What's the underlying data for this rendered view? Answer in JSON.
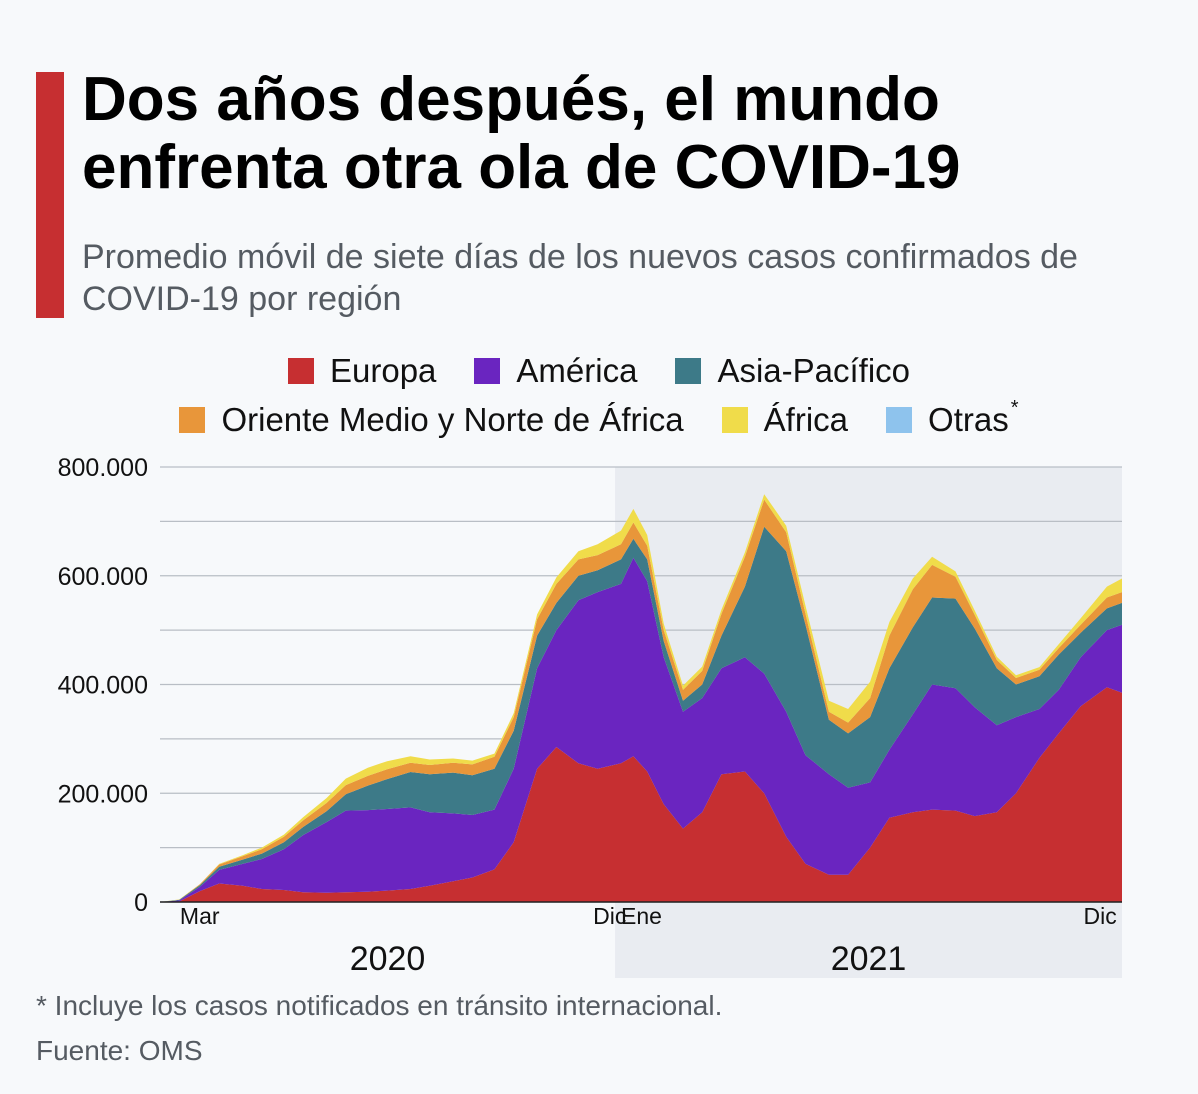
{
  "header": {
    "title": "Dos años después, el mundo enfrenta otra ola de COVID-19",
    "subtitle": "Promedio móvil de siete días de los nuevos casos confirmados de COVID-19 por región",
    "accent_color": "#c62f31"
  },
  "footer": {
    "footnote": "* Incluye los casos notificados en tránsito internacional.",
    "source": "Fuente: OMS"
  },
  "chart_data": {
    "type": "area",
    "stacked": true,
    "title": "Dos años después, el mundo enfrenta otra ola de COVID-19",
    "subtitle": "Promedio móvil de siete días de los nuevos casos confirmados de COVID-19 por región",
    "xlabel": "",
    "ylabel": "",
    "ylim": [
      0,
      800000
    ],
    "yticks": [
      0,
      200000,
      400000,
      600000,
      800000
    ],
    "ytick_labels": [
      "0",
      "200.000",
      "400.000",
      "600.000",
      "800.000"
    ],
    "xlim": [
      "2020-02-01",
      "2021-12-31"
    ],
    "xticks": [
      {
        "date": "2020-03-01",
        "label": "Mar"
      },
      {
        "date": "2020-12-01",
        "label": "Dic"
      },
      {
        "date": "2021-01-01",
        "label": "Ene"
      },
      {
        "date": "2021-12-01",
        "label": "Dic"
      }
    ],
    "year_labels": [
      {
        "label": "2020",
        "shaded": false
      },
      {
        "label": "2021",
        "shaded": true
      }
    ],
    "grid": true,
    "legend_position": "top",
    "x": [
      "2020-02-01",
      "2020-02-15",
      "2020-03-01",
      "2020-03-15",
      "2020-04-01",
      "2020-04-15",
      "2020-05-01",
      "2020-05-15",
      "2020-06-01",
      "2020-06-15",
      "2020-07-01",
      "2020-07-15",
      "2020-08-01",
      "2020-08-15",
      "2020-09-01",
      "2020-09-15",
      "2020-10-01",
      "2020-10-15",
      "2020-11-01",
      "2020-11-15",
      "2020-12-01",
      "2020-12-15",
      "2021-01-01",
      "2021-01-10",
      "2021-01-20",
      "2021-02-01",
      "2021-02-15",
      "2021-03-01",
      "2021-03-15",
      "2021-04-01",
      "2021-04-15",
      "2021-05-01",
      "2021-05-15",
      "2021-06-01",
      "2021-06-15",
      "2021-07-01",
      "2021-07-15",
      "2021-08-01",
      "2021-08-15",
      "2021-09-01",
      "2021-09-15",
      "2021-10-01",
      "2021-10-15",
      "2021-11-01",
      "2021-11-15",
      "2021-12-01",
      "2021-12-20",
      "2021-12-31"
    ],
    "series": [
      {
        "name": "Europa",
        "color": "#c62f31",
        "values": [
          0,
          1000,
          20000,
          34000,
          30000,
          24000,
          22000,
          18000,
          17000,
          18000,
          19000,
          21000,
          24000,
          30000,
          38000,
          45000,
          60000,
          110000,
          245000,
          285000,
          255000,
          245000,
          255000,
          268000,
          240000,
          180000,
          135000,
          165000,
          235000,
          240000,
          200000,
          120000,
          70000,
          50000,
          50000,
          100000,
          155000,
          165000,
          170000,
          168000,
          158000,
          165000,
          200000,
          265000,
          310000,
          360000,
          395000,
          385000
        ]
      },
      {
        "name": "América",
        "color": "#6a25c0",
        "values": [
          0,
          2000,
          8000,
          25000,
          40000,
          55000,
          75000,
          105000,
          130000,
          150000,
          150000,
          150000,
          150000,
          135000,
          125000,
          115000,
          110000,
          135000,
          185000,
          215000,
          300000,
          325000,
          330000,
          365000,
          350000,
          270000,
          215000,
          210000,
          195000,
          210000,
          220000,
          230000,
          200000,
          185000,
          160000,
          120000,
          125000,
          180000,
          230000,
          225000,
          200000,
          160000,
          140000,
          90000,
          80000,
          90000,
          105000,
          125000
        ]
      },
      {
        "name": "Asia-Pacífico",
        "color": "#3d7a88",
        "values": [
          0,
          1000,
          3000,
          6000,
          8000,
          10000,
          13000,
          15000,
          20000,
          30000,
          45000,
          55000,
          65000,
          70000,
          75000,
          73000,
          75000,
          70000,
          60000,
          50000,
          45000,
          40000,
          45000,
          35000,
          40000,
          30000,
          20000,
          25000,
          60000,
          130000,
          270000,
          295000,
          240000,
          100000,
          100000,
          120000,
          150000,
          160000,
          160000,
          165000,
          145000,
          105000,
          60000,
          60000,
          65000,
          45000,
          40000,
          40000
        ]
      },
      {
        "name": "Oriente Medio y Norte de África",
        "color": "#e8963a",
        "values": [
          0,
          500,
          1500,
          4000,
          6000,
          8000,
          10000,
          12000,
          15000,
          17000,
          18000,
          18000,
          17000,
          17000,
          18000,
          20000,
          22000,
          25000,
          30000,
          35000,
          30000,
          28000,
          28000,
          30000,
          25000,
          20000,
          20000,
          25000,
          40000,
          55000,
          50000,
          35000,
          20000,
          15000,
          20000,
          35000,
          60000,
          70000,
          60000,
          40000,
          25000,
          15000,
          12000,
          12000,
          12000,
          15000,
          20000,
          20000
        ]
      },
      {
        "name": "África",
        "color": "#f0dc4a",
        "values": [
          0,
          200,
          500,
          1000,
          2000,
          3000,
          4000,
          6000,
          9000,
          12000,
          15000,
          15000,
          12000,
          10000,
          8000,
          7000,
          6000,
          7000,
          9000,
          12000,
          15000,
          20000,
          25000,
          25000,
          20000,
          12000,
          8000,
          8000,
          8000,
          8000,
          10000,
          12000,
          15000,
          20000,
          25000,
          30000,
          25000,
          20000,
          15000,
          10000,
          8000,
          6000,
          5000,
          5000,
          7000,
          12000,
          20000,
          25000
        ]
      },
      {
        "name": "Otras",
        "color": "#8ec3ed",
        "values": [
          0,
          0,
          0,
          0,
          0,
          0,
          0,
          0,
          0,
          0,
          0,
          0,
          0,
          0,
          0,
          0,
          0,
          0,
          0,
          0,
          0,
          0,
          0,
          0,
          0,
          0,
          0,
          0,
          0,
          0,
          0,
          0,
          0,
          0,
          0,
          0,
          0,
          0,
          0,
          0,
          0,
          0,
          0,
          0,
          0,
          0,
          0,
          0
        ]
      }
    ]
  },
  "legend": {
    "row1": [
      {
        "label": "Europa",
        "color": "#c62f31"
      },
      {
        "label": "América",
        "color": "#6a25c0"
      },
      {
        "label": "Asia-Pacífico",
        "color": "#3d7a88"
      }
    ],
    "row2": [
      {
        "label": "Oriente Medio y Norte de África",
        "color": "#e8963a"
      },
      {
        "label": "África",
        "color": "#f0dc4a"
      },
      {
        "label": "Otras",
        "color": "#8ec3ed",
        "note": "*"
      }
    ]
  }
}
